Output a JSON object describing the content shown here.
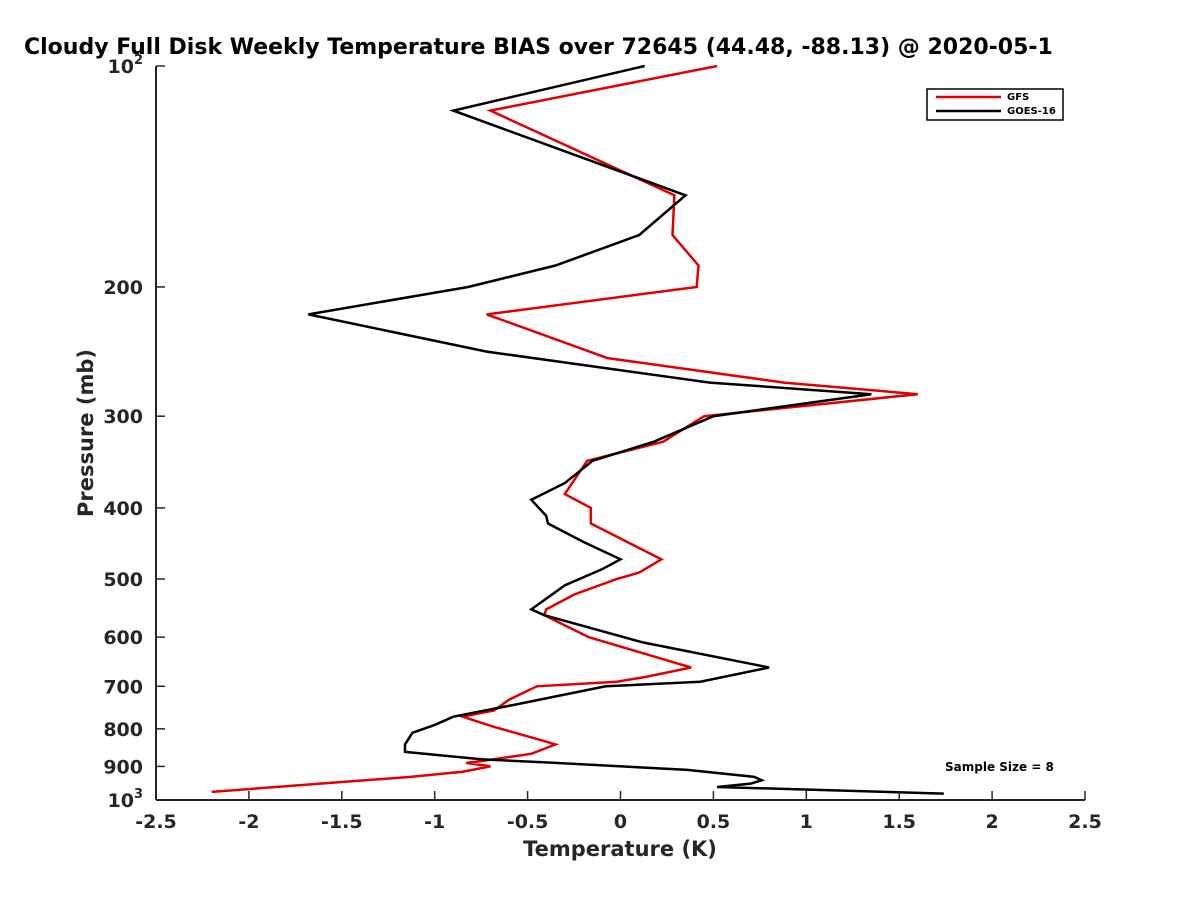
{
  "chart_data": {
    "type": "line",
    "title": "Cloudy Full Disk Weekly Temperature BIAS over 72645 (44.48, -88.13) @ 2020-05-1",
    "xlabel": "Temperature (K)",
    "ylabel": "Pressure (mb)",
    "xlim": [
      -2.5,
      2.5
    ],
    "ylim": [
      100,
      1000
    ],
    "y_scale": "log",
    "y_reversed": true,
    "x_ticks": [
      "-2.5",
      "-2",
      "-1.5",
      "-1",
      "-0.5",
      "0",
      "0.5",
      "1",
      "1.5",
      "2",
      "2.5"
    ],
    "y_ticks": [
      {
        "value": 100,
        "base": "10",
        "exp": "2"
      },
      {
        "value": 200,
        "label": "200"
      },
      {
        "value": 300,
        "label": "300"
      },
      {
        "value": 400,
        "label": "400"
      },
      {
        "value": 500,
        "label": "500"
      },
      {
        "value": 600,
        "label": "600"
      },
      {
        "value": 700,
        "label": "700"
      },
      {
        "value": 800,
        "label": "800"
      },
      {
        "value": 900,
        "label": "900"
      },
      {
        "value": 1000,
        "base": "10",
        "exp": "3"
      }
    ],
    "legend_position": "top-right",
    "grid": false,
    "annotation": "Sample Size = 8",
    "series": [
      {
        "name": "GFS",
        "color": "#e00000",
        "points": [
          [
            0.52,
            100
          ],
          [
            -0.7,
            115
          ],
          [
            0.29,
            150
          ],
          [
            0.28,
            170
          ],
          [
            0.42,
            187
          ],
          [
            0.41,
            200
          ],
          [
            -0.72,
            218
          ],
          [
            -0.07,
            250
          ],
          [
            0.88,
            270
          ],
          [
            1.6,
            280
          ],
          [
            0.45,
            300
          ],
          [
            0.23,
            325
          ],
          [
            -0.18,
            345
          ],
          [
            -0.3,
            383
          ],
          [
            -0.16,
            400
          ],
          [
            -0.16,
            420
          ],
          [
            0.22,
            470
          ],
          [
            0.1,
            490
          ],
          [
            -0.02,
            500
          ],
          [
            -0.25,
            525
          ],
          [
            -0.4,
            550
          ],
          [
            -0.41,
            560
          ],
          [
            -0.17,
            600
          ],
          [
            0.38,
            660
          ],
          [
            0.13,
            680
          ],
          [
            -0.02,
            690
          ],
          [
            -0.45,
            700
          ],
          [
            -0.6,
            730
          ],
          [
            -0.68,
            755
          ],
          [
            -0.85,
            770
          ],
          [
            -0.68,
            795
          ],
          [
            -0.42,
            830
          ],
          [
            -0.35,
            840
          ],
          [
            -0.48,
            865
          ],
          [
            -0.75,
            885
          ],
          [
            -0.83,
            890
          ],
          [
            -0.7,
            900
          ],
          [
            -0.85,
            915
          ],
          [
            -1.13,
            930
          ],
          [
            -1.5,
            945
          ],
          [
            -2.2,
            975
          ]
        ]
      },
      {
        "name": "GOES-16",
        "color": "#000000",
        "points": [
          [
            0.13,
            100
          ],
          [
            -0.9,
            115
          ],
          [
            0.35,
            150
          ],
          [
            0.1,
            170
          ],
          [
            -0.35,
            187
          ],
          [
            -0.82,
            200
          ],
          [
            -1.68,
            218
          ],
          [
            -0.72,
            245
          ],
          [
            0.48,
            270
          ],
          [
            1.35,
            280
          ],
          [
            0.5,
            300
          ],
          [
            0.18,
            325
          ],
          [
            -0.15,
            345
          ],
          [
            -0.3,
            370
          ],
          [
            -0.48,
            390
          ],
          [
            -0.4,
            410
          ],
          [
            -0.39,
            420
          ],
          [
            -0.2,
            445
          ],
          [
            0.0,
            470
          ],
          [
            -0.1,
            485
          ],
          [
            -0.3,
            510
          ],
          [
            -0.48,
            550
          ],
          [
            -0.41,
            560
          ],
          [
            0.12,
            610
          ],
          [
            0.8,
            660
          ],
          [
            0.43,
            690
          ],
          [
            -0.08,
            700
          ],
          [
            -0.55,
            740
          ],
          [
            -0.9,
            770
          ],
          [
            -1.0,
            790
          ],
          [
            -1.12,
            810
          ],
          [
            -1.16,
            840
          ],
          [
            -1.16,
            860
          ],
          [
            -0.75,
            880
          ],
          [
            -0.35,
            890
          ],
          [
            0.36,
            910
          ],
          [
            0.72,
            930
          ],
          [
            0.76,
            940
          ],
          [
            0.7,
            950
          ],
          [
            0.52,
            960
          ],
          [
            1.74,
            980
          ]
        ]
      }
    ]
  }
}
